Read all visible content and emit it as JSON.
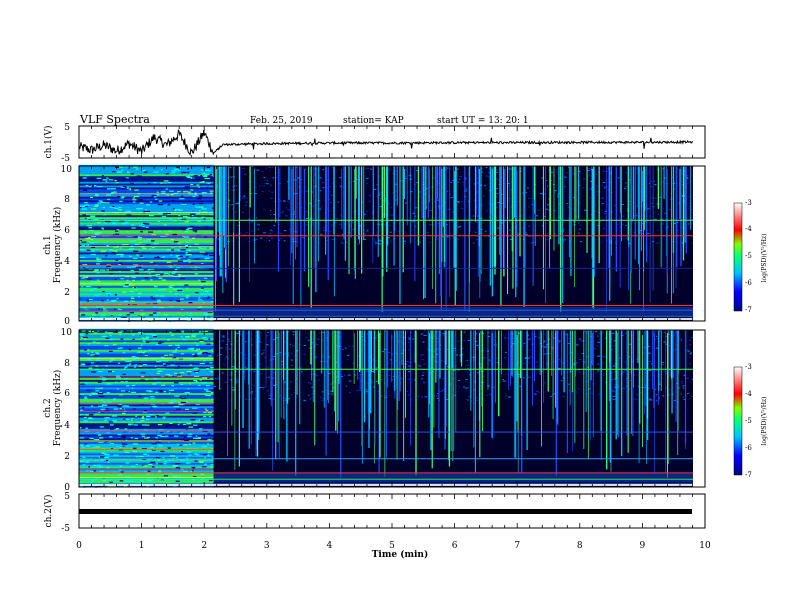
{
  "header": {
    "title": "VLF Spectra",
    "date": "Feb. 25, 2019",
    "station": "station= KAP",
    "start": "start  UT =   13: 20: 1"
  },
  "chart_data": [
    {
      "type": "line",
      "name": "ch1-waveform",
      "ylabel": "ch.1(V)",
      "ylim": [
        -5,
        5
      ],
      "yticks": [
        "5",
        "-5"
      ],
      "xlim": [
        0,
        10
      ],
      "description_points": {
        "x": [
          0,
          0.2,
          0.4,
          0.6,
          0.8,
          1.0,
          1.2,
          1.4,
          1.6,
          1.8,
          2.0,
          2.15,
          2.3,
          3,
          4,
          5,
          6,
          7,
          8,
          9,
          9.8
        ],
        "y": [
          -1.5,
          -2.5,
          -1.0,
          -2.8,
          -0.5,
          -3.0,
          1.5,
          -1.0,
          2.5,
          -3.5,
          3.0,
          -3.5,
          -0.8,
          -0.5,
          -0.3,
          -0.3,
          -0.2,
          -0.2,
          -0.1,
          -0.1,
          0.0
        ]
      }
    },
    {
      "type": "heatmap",
      "name": "ch1-spectrogram",
      "ylabel": "ch.1\nFrequency (kHz)",
      "ylim": [
        0,
        10
      ],
      "yticks": [
        "0",
        "2",
        "4",
        "6",
        "8",
        "10"
      ],
      "xlim": [
        0,
        10
      ],
      "regime_change_min": 2.15,
      "colorbar": {
        "label": "log(PSD)(V²/Hz)",
        "range": [
          -7,
          -3
        ],
        "ticks": [
          "-3",
          "-4",
          "-5",
          "-6",
          "-7"
        ]
      }
    },
    {
      "type": "heatmap",
      "name": "ch2-spectrogram",
      "ylabel": "ch.2\nFrequency (kHz)",
      "ylim": [
        0,
        10
      ],
      "yticks": [
        "0",
        "2",
        "4",
        "6",
        "8",
        "10"
      ],
      "xlim": [
        0,
        10
      ],
      "regime_change_min": 2.15,
      "colorbar": {
        "label": "log(PSD)(V²/Hz)",
        "range": [
          -7,
          -3
        ],
        "ticks": [
          "-3",
          "-4",
          "-5",
          "-6",
          "-7"
        ]
      }
    },
    {
      "type": "line",
      "name": "ch2-waveform",
      "ylabel": "ch.2(V)",
      "ylim": [
        -5,
        5
      ],
      "yticks": [
        "5",
        "-5"
      ],
      "xlim": [
        0,
        10
      ],
      "description_points": {
        "x": [
          0,
          9.8
        ],
        "y": [
          0,
          0
        ]
      }
    }
  ],
  "xaxis": {
    "label": "Time (min)",
    "ticks": [
      "0",
      "1",
      "2",
      "3",
      "4",
      "5",
      "6",
      "7",
      "8",
      "9",
      "10"
    ]
  },
  "colors": {
    "background": "#000000",
    "low": "#000060",
    "mid": "#0040ff",
    "cyan": "#00e0ff",
    "green": "#30ff30",
    "red": "#ff3030"
  }
}
